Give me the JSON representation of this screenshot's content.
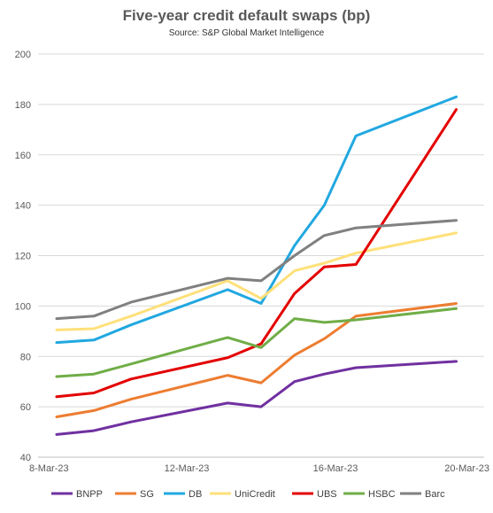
{
  "chart_data": {
    "type": "line",
    "title": "Five-year credit default swaps (bp)",
    "subtitle": "Source: S&P Global Market Intelligence",
    "x": [
      "8-Mar-23",
      "9-Mar-23",
      "10-Mar-23",
      "13-Mar-23",
      "14-Mar-23",
      "15-Mar-23",
      "16-Mar-23",
      "17-Mar-23",
      "20-Mar-23"
    ],
    "x_tick_labels": [
      {
        "label": "8-Mar-23",
        "index": 0
      },
      {
        "label": "12-Mar-23",
        "index": 2.667
      },
      {
        "label": "16-Mar-23",
        "index": 5.333
      },
      {
        "label": "20-Mar-23",
        "index": 8
      }
    ],
    "x_positions": [
      0.5,
      1.5,
      2.5,
      5.1,
      6.0,
      6.9,
      7.7,
      8.55,
      11.25
    ],
    "ylim": [
      40,
      200
    ],
    "y_ticks": [
      40,
      60,
      80,
      100,
      120,
      140,
      160,
      180,
      200
    ],
    "grid": true,
    "legend_position": "bottom",
    "series": [
      {
        "name": "BNPP",
        "color": "#7030A0",
        "values": [
          49,
          50.5,
          54,
          61.5,
          60,
          70,
          73,
          75.5,
          78
        ]
      },
      {
        "name": "SG",
        "color": "#ED7D31",
        "values": [
          56,
          58.5,
          63,
          72.5,
          69.5,
          80.5,
          87,
          96,
          101
        ]
      },
      {
        "name": "DB",
        "color": "#21A8E0",
        "values": [
          85.5,
          86.5,
          92.5,
          106.5,
          101,
          124,
          140,
          167.5,
          183
        ]
      },
      {
        "name": "UniCredit",
        "color": "#FFE07A",
        "values": [
          90.5,
          91,
          96,
          110,
          103,
          114,
          117,
          121,
          129
        ]
      },
      {
        "name": "UBS",
        "color": "#E30000",
        "values": [
          64,
          65.5,
          71,
          79.5,
          85,
          105,
          115.5,
          116.5,
          178
        ]
      },
      {
        "name": "HSBC",
        "color": "#70AD47",
        "values": [
          72,
          73,
          77,
          87.5,
          83.5,
          95,
          93.5,
          94.5,
          99
        ]
      },
      {
        "name": "Barc",
        "color": "#808080",
        "values": [
          95,
          96,
          101.5,
          111,
          110,
          120,
          128,
          131,
          134
        ]
      }
    ]
  }
}
